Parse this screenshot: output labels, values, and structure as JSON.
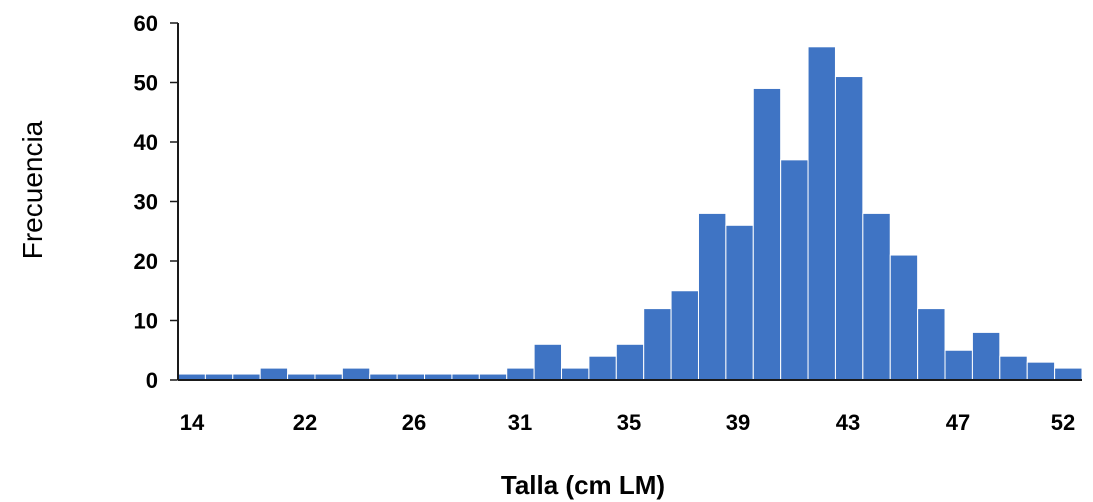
{
  "chart_data": {
    "type": "bar",
    "xlabel": "Talla (cm LM)",
    "ylabel": "Frecuencia",
    "ylim": [
      0,
      60
    ],
    "yticks": [
      "0",
      "10",
      "20",
      "30",
      "40",
      "50",
      "60"
    ],
    "xtick_labels": [
      "14",
      "22",
      "26",
      "31",
      "35",
      "39",
      "43",
      "47",
      "52"
    ],
    "values": [
      1,
      1,
      1,
      2,
      1,
      1,
      2,
      1,
      1,
      1,
      1,
      1,
      2,
      6,
      2,
      4,
      6,
      12,
      15,
      28,
      26,
      49,
      37,
      56,
      51,
      28,
      21,
      12,
      5,
      8,
      4,
      3,
      2
    ],
    "bar_color": "#3f74c4",
    "grid": false,
    "legend": "none"
  }
}
